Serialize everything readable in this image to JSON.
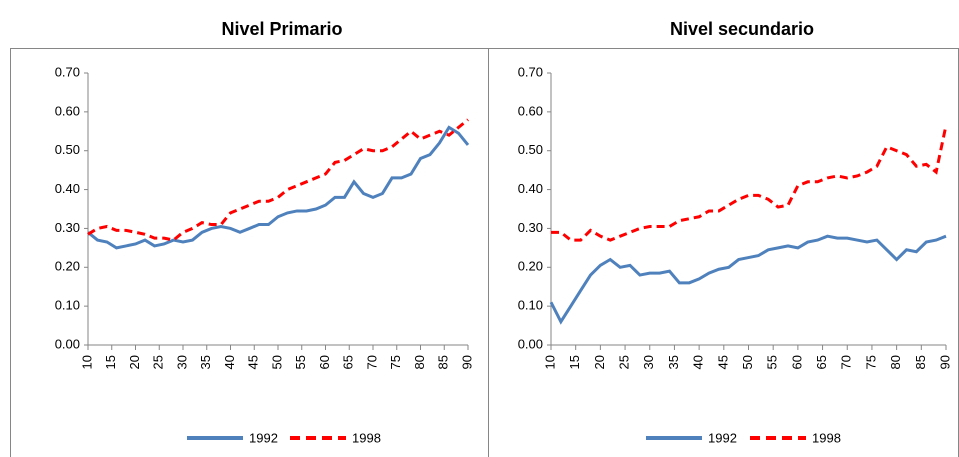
{
  "chart_data": [
    {
      "type": "line",
      "title": "Nivel Primario",
      "xlim": [
        10,
        90
      ],
      "xticks": [
        10,
        15,
        20,
        25,
        30,
        35,
        40,
        45,
        50,
        55,
        60,
        65,
        70,
        75,
        80,
        85,
        90
      ],
      "ylim": [
        0,
        0.7
      ],
      "yticks": [
        {
          "value": 0,
          "label": "0.00"
        },
        {
          "value": 0.1,
          "label": "0.10"
        },
        {
          "value": 0.2,
          "label": "0.20"
        },
        {
          "value": 0.3,
          "label": "0.30"
        },
        {
          "value": 0.4,
          "label": "0.40"
        },
        {
          "value": 0.5,
          "label": "0.50"
        },
        {
          "value": 0.6,
          "label": "0.60"
        },
        {
          "value": 0.7,
          "label": "0.70"
        }
      ],
      "x": [
        10,
        12,
        14,
        16,
        18,
        20,
        22,
        24,
        26,
        28,
        30,
        32,
        34,
        36,
        38,
        40,
        42,
        44,
        46,
        48,
        50,
        52,
        54,
        56,
        58,
        60,
        62,
        64,
        66,
        68,
        70,
        72,
        74,
        76,
        78,
        80,
        82,
        84,
        86,
        88,
        90
      ],
      "series": [
        {
          "name": "1992",
          "color": "#4f81bd",
          "values": [
            0.29,
            0.27,
            0.265,
            0.25,
            0.255,
            0.26,
            0.27,
            0.255,
            0.26,
            0.27,
            0.265,
            0.27,
            0.29,
            0.3,
            0.305,
            0.3,
            0.29,
            0.3,
            0.31,
            0.31,
            0.33,
            0.34,
            0.345,
            0.345,
            0.35,
            0.36,
            0.38,
            0.38,
            0.42,
            0.39,
            0.38,
            0.39,
            0.43,
            0.43,
            0.44,
            0.48,
            0.49,
            0.52,
            0.56,
            0.545,
            0.515
          ]
        },
        {
          "name": "1998",
          "color": "#ff0000",
          "dashed": true,
          "values": [
            0.285,
            0.3,
            0.305,
            0.295,
            0.295,
            0.29,
            0.285,
            0.275,
            0.275,
            0.27,
            0.29,
            0.3,
            0.315,
            0.31,
            0.31,
            0.34,
            0.35,
            0.36,
            0.37,
            0.37,
            0.38,
            0.4,
            0.41,
            0.42,
            0.43,
            0.44,
            0.47,
            0.475,
            0.49,
            0.505,
            0.5,
            0.5,
            0.51,
            0.53,
            0.55,
            0.53,
            0.54,
            0.55,
            0.54,
            0.56,
            0.58
          ]
        }
      ]
    },
    {
      "type": "line",
      "title": "Nivel secundario",
      "xlim": [
        10,
        90
      ],
      "xticks": [
        10,
        15,
        20,
        25,
        30,
        35,
        40,
        45,
        50,
        55,
        60,
        65,
        70,
        75,
        80,
        85,
        90
      ],
      "ylim": [
        0,
        0.7
      ],
      "yticks": [
        {
          "value": 0,
          "label": "0.00"
        },
        {
          "value": 0.1,
          "label": "0.10"
        },
        {
          "value": 0.2,
          "label": "0.20"
        },
        {
          "value": 0.3,
          "label": "0.30"
        },
        {
          "value": 0.4,
          "label": "0.40"
        },
        {
          "value": 0.5,
          "label": "0.50"
        },
        {
          "value": 0.6,
          "label": "0.60"
        },
        {
          "value": 0.7,
          "label": "0.70"
        }
      ],
      "x": [
        10,
        12,
        14,
        16,
        18,
        20,
        22,
        24,
        26,
        28,
        30,
        32,
        34,
        36,
        38,
        40,
        42,
        44,
        46,
        48,
        50,
        52,
        54,
        56,
        58,
        60,
        62,
        64,
        66,
        68,
        70,
        72,
        74,
        76,
        78,
        80,
        82,
        84,
        86,
        88,
        90
      ],
      "series": [
        {
          "name": "1992",
          "color": "#4f81bd",
          "values": [
            0.11,
            0.06,
            0.1,
            0.14,
            0.18,
            0.205,
            0.22,
            0.2,
            0.205,
            0.18,
            0.185,
            0.185,
            0.19,
            0.16,
            0.16,
            0.17,
            0.185,
            0.195,
            0.2,
            0.22,
            0.225,
            0.23,
            0.245,
            0.25,
            0.255,
            0.25,
            0.265,
            0.27,
            0.28,
            0.275,
            0.275,
            0.27,
            0.265,
            0.27,
            0.245,
            0.22,
            0.245,
            0.24,
            0.265,
            0.27,
            0.28
          ]
        },
        {
          "name": "1998",
          "color": "#ff0000",
          "dashed": true,
          "values": [
            0.29,
            0.29,
            0.27,
            0.27,
            0.295,
            0.28,
            0.27,
            0.28,
            0.29,
            0.3,
            0.305,
            0.305,
            0.305,
            0.32,
            0.325,
            0.33,
            0.345,
            0.345,
            0.36,
            0.375,
            0.385,
            0.385,
            0.375,
            0.355,
            0.36,
            0.41,
            0.42,
            0.42,
            0.43,
            0.435,
            0.43,
            0.435,
            0.445,
            0.46,
            0.51,
            0.5,
            0.49,
            0.46,
            0.465,
            0.445,
            0.565
          ]
        }
      ]
    }
  ]
}
